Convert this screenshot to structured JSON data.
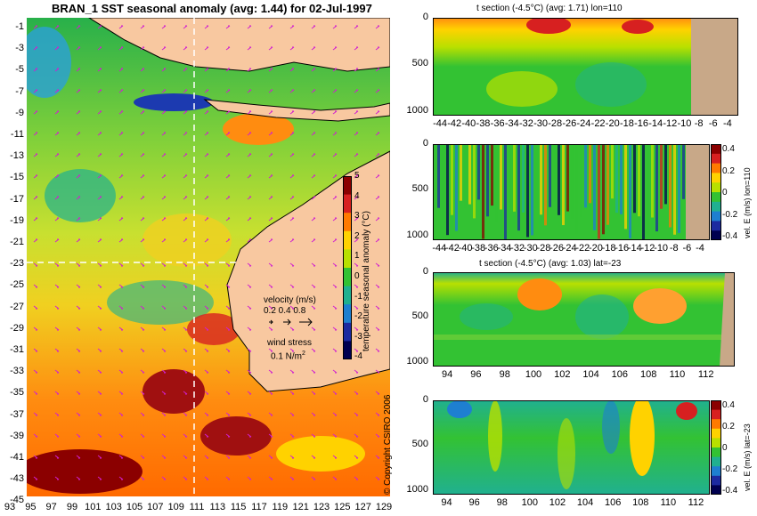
{
  "map": {
    "title": "BRAN_1  SST seasonal anomaly (avg: 1.44) for 02-Jul-1997",
    "lat_labels": [
      "-1",
      "-3",
      "-5",
      "-7",
      "-9",
      "-11",
      "-13",
      "-15",
      "-17",
      "-19",
      "-21",
      "-23",
      "-25",
      "-27",
      "-29",
      "-31",
      "-33",
      "-35",
      "-37",
      "-39",
      "-41",
      "-43",
      "-45"
    ],
    "lon_labels": [
      "93",
      "95",
      "97",
      "99",
      "101",
      "103",
      "105",
      "107",
      "109",
      "111",
      "113",
      "115",
      "117",
      "119",
      "121",
      "123",
      "125",
      "127",
      "129"
    ],
    "colorbar": {
      "ticks": [
        "5",
        "4",
        "3",
        "2",
        "1",
        "0",
        "-1",
        "-2",
        "-3",
        "-4"
      ],
      "label": "temperature seasonal anomaly (°C)",
      "colors": [
        "#8b0000",
        "#d72020",
        "#ff7a00",
        "#ffd200",
        "#b8e000",
        "#33c233",
        "#20b090",
        "#1e7fd0",
        "#1c2aa0",
        "#000050"
      ]
    },
    "velocity_label": "velocity (m/s)",
    "velocity_scale": "0.2 0.4 0.8",
    "wind_label": "wind stress",
    "wind_scale": "0.1 N/m",
    "wind_exp": "2",
    "copyright": "© Copyright CSIRO 2006",
    "land_color": "#f8c8a0"
  },
  "panels": [
    {
      "title": "t section (-4.5°C) (avg: 1.71) lon=110",
      "y_ticks": [
        "0",
        "500",
        "1000"
      ],
      "x_ticks": [
        "-44",
        "-42",
        "-40",
        "-38",
        "-36",
        "-34",
        "-32",
        "-30",
        "-28",
        "-26",
        "-24",
        "-22",
        "-20",
        "-18",
        "-16",
        "-14",
        "-12",
        "-10",
        "-8",
        "-6",
        "-4"
      ],
      "colorbar": null
    },
    {
      "title": "",
      "y_ticks": [
        "0",
        "500",
        "1000"
      ],
      "x_ticks": [
        "-44",
        "-42",
        "-40",
        "-38",
        "-36",
        "-34",
        "-32",
        "-30",
        "-28",
        "-26",
        "-24",
        "-22",
        "-20",
        "-18",
        "-16",
        "-14",
        "-12",
        "-10",
        "-8",
        "-6",
        "-4"
      ],
      "colorbar": {
        "ticks": [
          "0.4",
          "0.2",
          "0",
          "-0.2",
          "-0.4"
        ],
        "label": "vel. E (m/s) lon=110"
      }
    },
    {
      "title": "t section (-4.5°C) (avg: 1.03) lat=-23",
      "y_ticks": [
        "0",
        "500",
        "1000"
      ],
      "x_ticks": [
        "94",
        "96",
        "98",
        "100",
        "102",
        "104",
        "106",
        "108",
        "110",
        "112"
      ],
      "colorbar": null
    },
    {
      "title": "",
      "y_ticks": [
        "0",
        "500",
        "1000"
      ],
      "x_ticks": [
        "94",
        "96",
        "98",
        "100",
        "102",
        "104",
        "106",
        "108",
        "110",
        "112"
      ],
      "colorbar": {
        "ticks": [
          "0.4",
          "0.2",
          "0",
          "-0.2",
          "-0.4"
        ],
        "label": "vel. E (m/s) lat=-23"
      }
    }
  ]
}
